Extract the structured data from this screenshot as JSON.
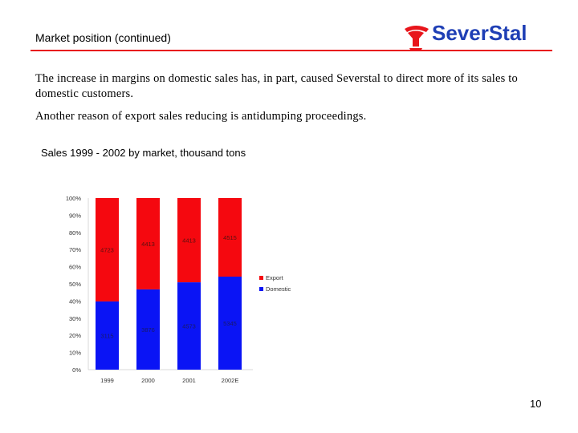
{
  "slide": {
    "title": "Market position (continued)",
    "paragraph1": "The increase in margins on domestic sales has, in part, caused Severstal to direct more of its sales to domestic customers.",
    "paragraph2": "Another reason of export sales reducing is antidumping proceedings.",
    "chart_title": "Sales 1999 - 2002 by market, thousand tons",
    "page_number": "10"
  },
  "logo": {
    "text": "SeverStal",
    "brand_color": "#1f3fb5",
    "accent_color": "#e8151b"
  },
  "chart_data": {
    "type": "bar",
    "stacked": "100%",
    "categories": [
      "1999",
      "2000",
      "2001",
      "2002E"
    ],
    "series": [
      {
        "name": "Domestic",
        "color": "#0a14f5",
        "values": [
          3115,
          3876,
          4573,
          5345
        ]
      },
      {
        "name": "Export",
        "color": "#f5080f",
        "values": [
          4723,
          4413,
          4413,
          4515
        ]
      }
    ],
    "y_ticks": [
      "0%",
      "10%",
      "20%",
      "30%",
      "40%",
      "50%",
      "60%",
      "70%",
      "80%",
      "90%",
      "100%"
    ],
    "ylim": [
      0,
      100
    ],
    "legend": [
      "Export",
      "Domestic"
    ],
    "legend_position": "right",
    "grid": false
  }
}
